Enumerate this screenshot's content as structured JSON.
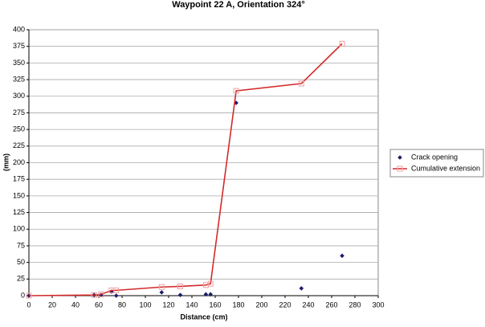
{
  "chart_data": {
    "type": "scatter",
    "title": "Waypoint 22 A, Orientation 324°",
    "x_label": "Distance (cm)",
    "y_label": "(mm)",
    "x": [
      0,
      56,
      62,
      71,
      75,
      114,
      130,
      152,
      156,
      178,
      234,
      269
    ],
    "series": [
      {
        "name": "Crack opening",
        "color": "#1c1c6b",
        "style": "markers",
        "values": [
          0,
          1,
          1,
          6,
          0,
          5,
          1,
          2,
          2,
          290,
          11,
          60
        ]
      },
      {
        "name": "Cumulative extension",
        "color": "#d42a2a",
        "marker_color": "#f0a0a0",
        "style": "line",
        "values": [
          0,
          1,
          2,
          8,
          8,
          13,
          14,
          16,
          18,
          308,
          319,
          379
        ]
      }
    ],
    "xlim": [
      0,
      300
    ],
    "xticks": [
      0,
      20,
      40,
      60,
      80,
      100,
      120,
      140,
      160,
      180,
      200,
      220,
      240,
      260,
      280,
      300
    ],
    "ylim": [
      0,
      400
    ],
    "yticks": [
      0,
      25,
      50,
      75,
      100,
      125,
      150,
      175,
      200,
      225,
      250,
      275,
      300,
      325,
      350,
      375,
      400
    ],
    "grid": true,
    "legend": "right"
  }
}
